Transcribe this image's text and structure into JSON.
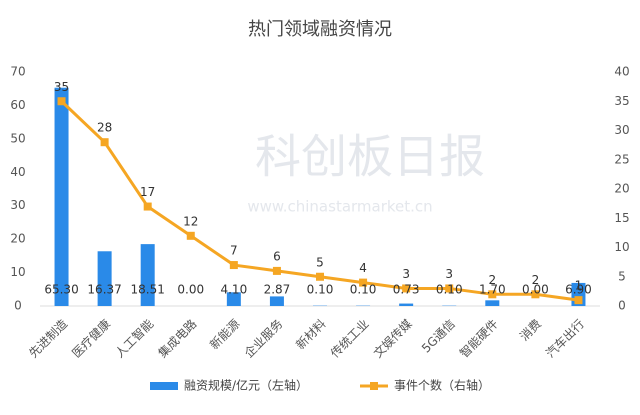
{
  "chart_data": {
    "type": "bar-line",
    "title": "热门领域融资情况",
    "watermark": "科创板日报",
    "watermark_url": "www.chinastarmarket.cn",
    "categories": [
      "先进制造",
      "医疗健康",
      "人工智能",
      "集成电路",
      "新能源",
      "企业服务",
      "新材料",
      "传统工业",
      "文娱传媒",
      "5G通信",
      "智能硬件",
      "消费",
      "汽车出行"
    ],
    "series": [
      {
        "name": "融资规模/亿元（左轴）",
        "type": "bar",
        "color": "#2a8ae8",
        "values": [
          65.3,
          16.37,
          18.51,
          0,
          4.1,
          2.87,
          0.1,
          0.1,
          0.73,
          0.1,
          1.7,
          0,
          6.9
        ],
        "value_labels": [
          "65.30",
          "16.37",
          "18.51",
          "0.00",
          "4.10",
          "2.87",
          "0.10",
          "0.10",
          "0.73",
          "0.10",
          "1.70",
          "0.00",
          "6.90"
        ]
      },
      {
        "name": "事件个数（右轴）",
        "type": "line",
        "axis": "y2",
        "color": "#f5a623",
        "values": [
          35,
          28,
          17,
          12,
          7,
          6,
          5,
          4,
          3,
          3,
          2,
          2,
          1
        ]
      }
    ],
    "ylim": [
      0,
      70
    ],
    "yticks": [
      0,
      10,
      20,
      30,
      40,
      50,
      60,
      70
    ],
    "y2lim": [
      0,
      40
    ],
    "y2ticks": [
      0,
      5,
      10,
      15,
      20,
      25,
      30,
      35,
      40
    ],
    "grid": false,
    "legend": "bottom"
  }
}
